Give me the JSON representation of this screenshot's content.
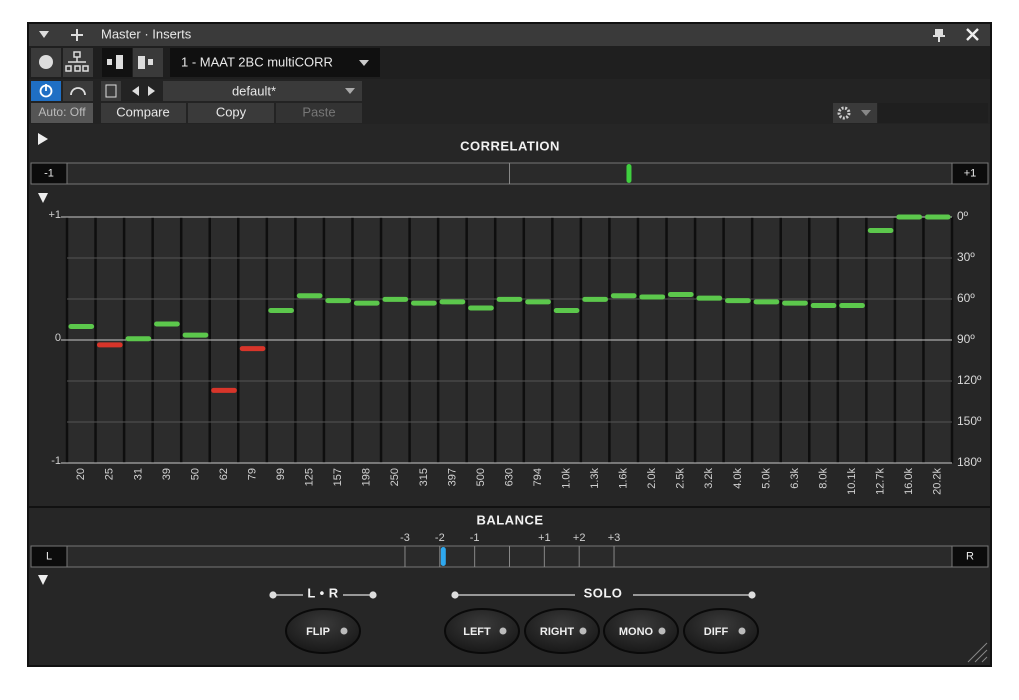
{
  "window": {
    "title": "Master · Inserts"
  },
  "toolbar": {
    "plugin": "1 - MAAT 2BC multiCORR",
    "preset": "default*",
    "auto": "Auto: Off",
    "compare": "Compare",
    "copy": "Copy",
    "paste": "Paste"
  },
  "correlation_meter": {
    "title": "CORRELATION",
    "left_label": "-1",
    "right_label": "+1",
    "xlim": [
      -1,
      1
    ],
    "value": 0.27,
    "color": "#3fcf3f"
  },
  "chart_data": {
    "type": "bar",
    "categories": [
      "20",
      "25",
      "31",
      "39",
      "50",
      "62",
      "79",
      "99",
      "125",
      "157",
      "198",
      "250",
      "315",
      "397",
      "500",
      "630",
      "794",
      "1.0k",
      "1.3k",
      "1.6k",
      "2.0k",
      "2.5k",
      "3.2k",
      "4.0k",
      "5.0k",
      "6.3k",
      "8.0k",
      "10.1k",
      "12.7k",
      "16.0k",
      "20.2k"
    ],
    "values": [
      0.11,
      -0.04,
      0.01,
      0.13,
      0.04,
      -0.41,
      -0.07,
      0.24,
      0.36,
      0.32,
      0.3,
      0.33,
      0.3,
      0.31,
      0.26,
      0.33,
      0.31,
      0.24,
      0.33,
      0.36,
      0.35,
      0.37,
      0.34,
      0.32,
      0.31,
      0.3,
      0.28,
      0.28,
      0.89,
      1.0,
      1.0
    ],
    "ylim": [
      -1,
      1
    ],
    "yticks": [
      -1,
      0,
      {
        "value": 1,
        "label": "+1"
      }
    ],
    "y2lim": [
      180,
      0
    ],
    "y2ticks": [
      {
        "value": 0,
        "label": "0º"
      },
      {
        "value": 30,
        "label": "30º"
      },
      {
        "value": 60,
        "label": "60º"
      },
      {
        "value": 90,
        "label": "90º"
      },
      {
        "value": 120,
        "label": "120º"
      },
      {
        "value": 150,
        "label": "150º"
      },
      {
        "value": 180,
        "label": "180º"
      }
    ],
    "positive_color": "#5cc84c",
    "negative_color": "#d8352a",
    "grid": true
  },
  "balance": {
    "title": "BALANCE",
    "left_label": "L",
    "right_label": "R",
    "xlim": [
      -12.7,
      12.7
    ],
    "xticks": [
      -3,
      -2,
      -1,
      {
        "value": 1,
        "label": "+1"
      },
      {
        "value": 2,
        "label": "+2"
      },
      {
        "value": 3,
        "label": "+3"
      }
    ],
    "value": -1.9,
    "color": "#2ea8ef"
  },
  "controls": {
    "lr_label": "L • R",
    "solo_label": "SOLO",
    "buttons": [
      "FLIP",
      "LEFT",
      "RIGHT",
      "MONO",
      "DIFF"
    ]
  }
}
